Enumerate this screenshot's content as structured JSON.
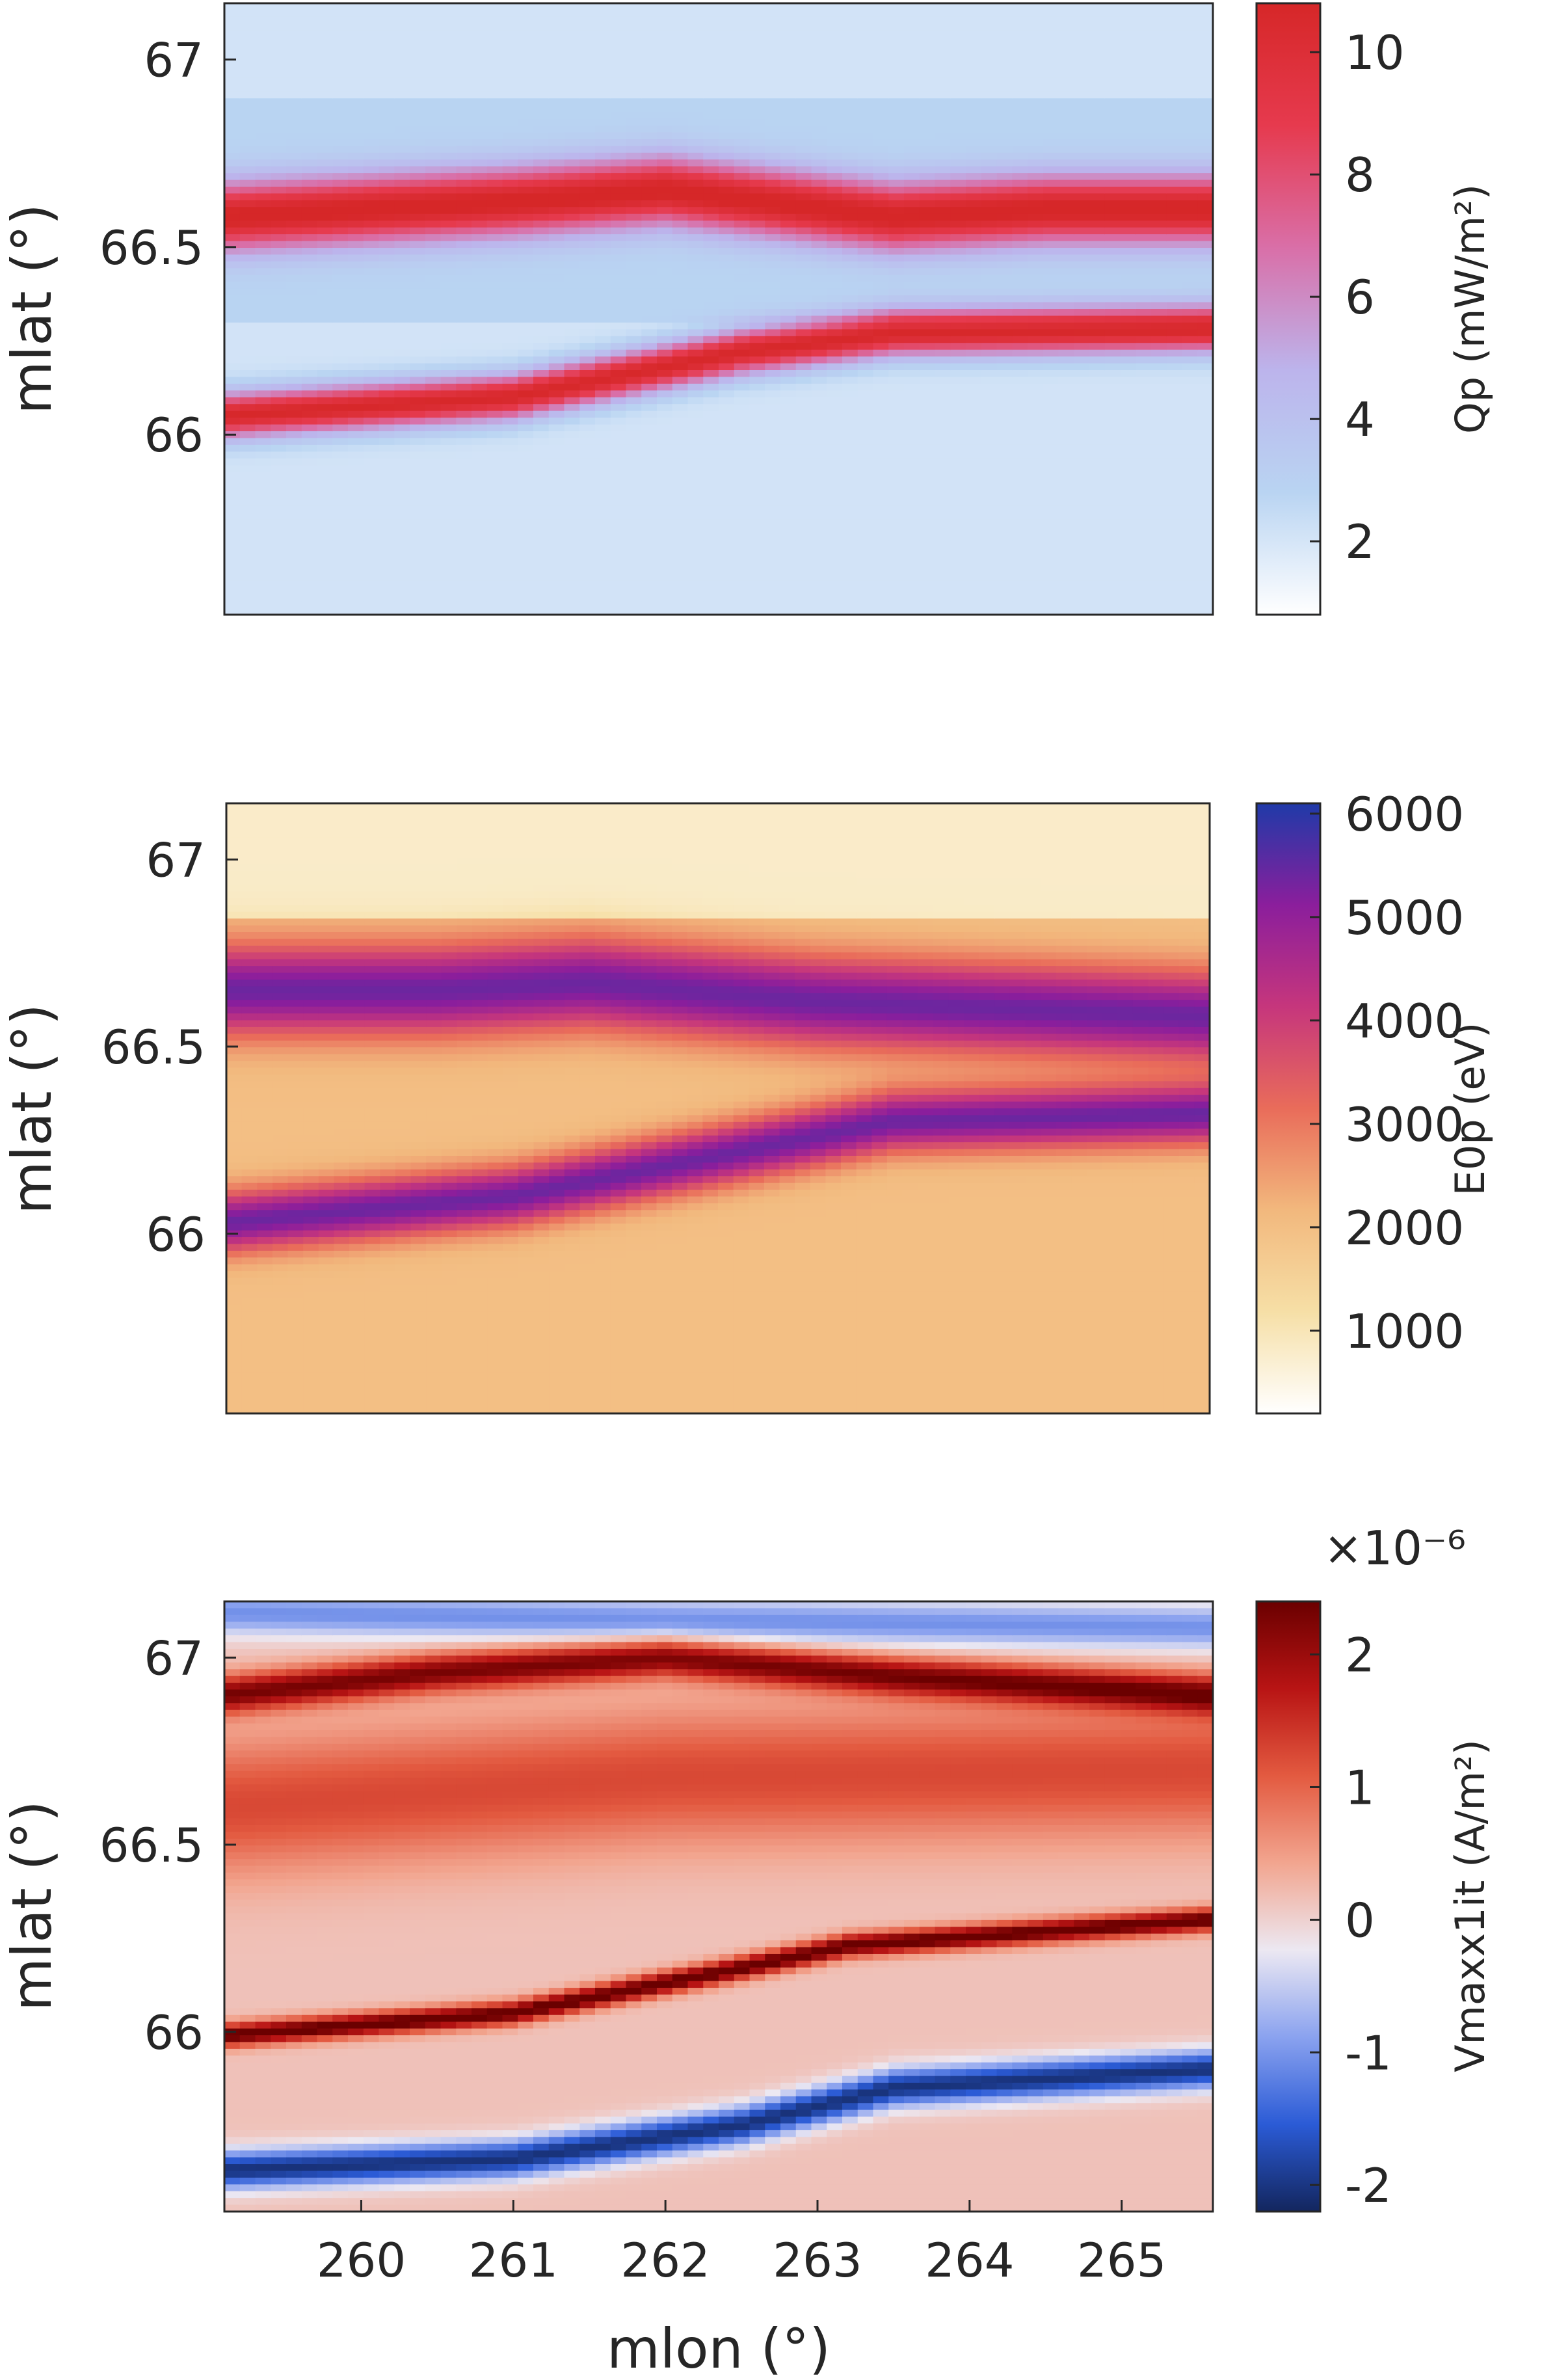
{
  "chart_data": [
    {
      "type": "heatmap",
      "panel": "top",
      "ylabel": "mlat (°)",
      "xlim": [
        259.1,
        265.6
      ],
      "ylim": [
        65.52,
        67.15
      ],
      "yticks": [
        "66",
        "66.5",
        "67"
      ],
      "colorbar": {
        "label": "Qp (mW/m²)",
        "range": [
          0.8,
          10.8
        ],
        "ticks": [
          "2",
          "4",
          "6",
          "8",
          "10"
        ],
        "colors": [
          "#ffffff",
          "#b9d4f2",
          "#bcb4ec",
          "#d96fa8",
          "#e63a4e",
          "#d62728"
        ]
      },
      "bands": [
        {
          "kind": "high",
          "desc": "upper arc",
          "lon": [
            259.1,
            261.0,
            262.0,
            263.5,
            264.5,
            265.6
          ],
          "lat": [
            66.58,
            66.62,
            66.65,
            66.58,
            66.6,
            66.6
          ],
          "width": 0.09,
          "peak": 10.2
        },
        {
          "kind": "high",
          "desc": "lower arc",
          "lon": [
            259.1,
            261.0,
            262.5,
            263.5,
            265.6
          ],
          "lat": [
            66.05,
            66.1,
            66.22,
            66.27,
            66.28
          ],
          "width": 0.06,
          "peak": 10.6
        }
      ]
    },
    {
      "type": "heatmap",
      "panel": "middle",
      "ylabel": "mlat (°)",
      "xlim": [
        259.1,
        265.6
      ],
      "ylim": [
        65.52,
        67.15
      ],
      "yticks": [
        "66",
        "66.5",
        "67"
      ],
      "colorbar": {
        "label": "E0p (eV)",
        "range": [
          200,
          6100
        ],
        "ticks": [
          "1000",
          "2000",
          "3000",
          "4000",
          "5000",
          "6000"
        ],
        "colors": [
          "#ffffff",
          "#f6dfa6",
          "#f2b87d",
          "#e96c5a",
          "#c6367c",
          "#8b1e9c",
          "#1f3aa8"
        ]
      },
      "bands": [
        {
          "kind": "high",
          "desc": "upper arc",
          "lon": [
            259.1,
            260.5,
            261.5,
            263.0,
            265.6
          ],
          "lat": [
            66.65,
            66.65,
            66.67,
            66.62,
            66.58
          ],
          "width": 0.12,
          "peak": 5200
        },
        {
          "kind": "high",
          "desc": "lower arc",
          "lon": [
            259.1,
            261.0,
            262.5,
            263.5,
            265.6
          ],
          "lat": [
            66.03,
            66.1,
            66.22,
            66.3,
            66.32
          ],
          "width": 0.08,
          "peak": 5200
        }
      ]
    },
    {
      "type": "heatmap",
      "panel": "bottom",
      "ylabel": "mlat (°)",
      "xlabel": "mlon (°)",
      "xlim": [
        259.1,
        265.6
      ],
      "ylim": [
        65.52,
        67.15
      ],
      "xticks": [
        "260",
        "261",
        "262",
        "263",
        "264",
        "265"
      ],
      "yticks": [
        "66",
        "66.5",
        "67"
      ],
      "colorbar": {
        "label": "Vmaxx1it (A/m²)",
        "exponent": "×10⁻⁶",
        "range": [
          -2.2,
          2.4
        ],
        "ticks": [
          "-2",
          "-1",
          "0",
          "1",
          "2"
        ],
        "colors": [
          "#13265e",
          "#2b5bd6",
          "#8aa2ef",
          "#ece8f2",
          "#f2a58f",
          "#e35a40",
          "#b81414",
          "#6b0000"
        ]
      },
      "bands": [
        {
          "kind": "high",
          "desc": "upper positive arc",
          "lon": [
            259.1,
            260.5,
            262.0,
            263.5,
            265.6
          ],
          "lat": [
            66.9,
            66.96,
            67.0,
            66.95,
            66.9
          ],
          "width": 0.05,
          "peak": 2.1
        },
        {
          "kind": "high",
          "desc": "broad positive region",
          "lon": [
            259.1,
            262.0,
            265.6
          ],
          "lat": [
            66.6,
            66.68,
            66.7
          ],
          "width": 0.18,
          "peak": 1.1
        },
        {
          "kind": "high",
          "desc": "lower positive arc",
          "lon": [
            259.1,
            261.0,
            262.5,
            263.2,
            265.6
          ],
          "lat": [
            65.99,
            66.05,
            66.17,
            66.23,
            66.3
          ],
          "width": 0.03,
          "peak": 2.4
        },
        {
          "kind": "low",
          "desc": "negative band",
          "lon": [
            259.1,
            261.0,
            262.5,
            263.5,
            265.6
          ],
          "lat": [
            65.63,
            65.66,
            65.75,
            65.85,
            65.9
          ],
          "width": 0.05,
          "peak": -2.2
        },
        {
          "kind": "low",
          "desc": "upper negative edge",
          "lon": [
            259.1,
            262.0,
            265.6
          ],
          "lat": [
            67.12,
            67.1,
            67.08
          ],
          "width": 0.06,
          "peak": -1.2
        }
      ]
    }
  ]
}
